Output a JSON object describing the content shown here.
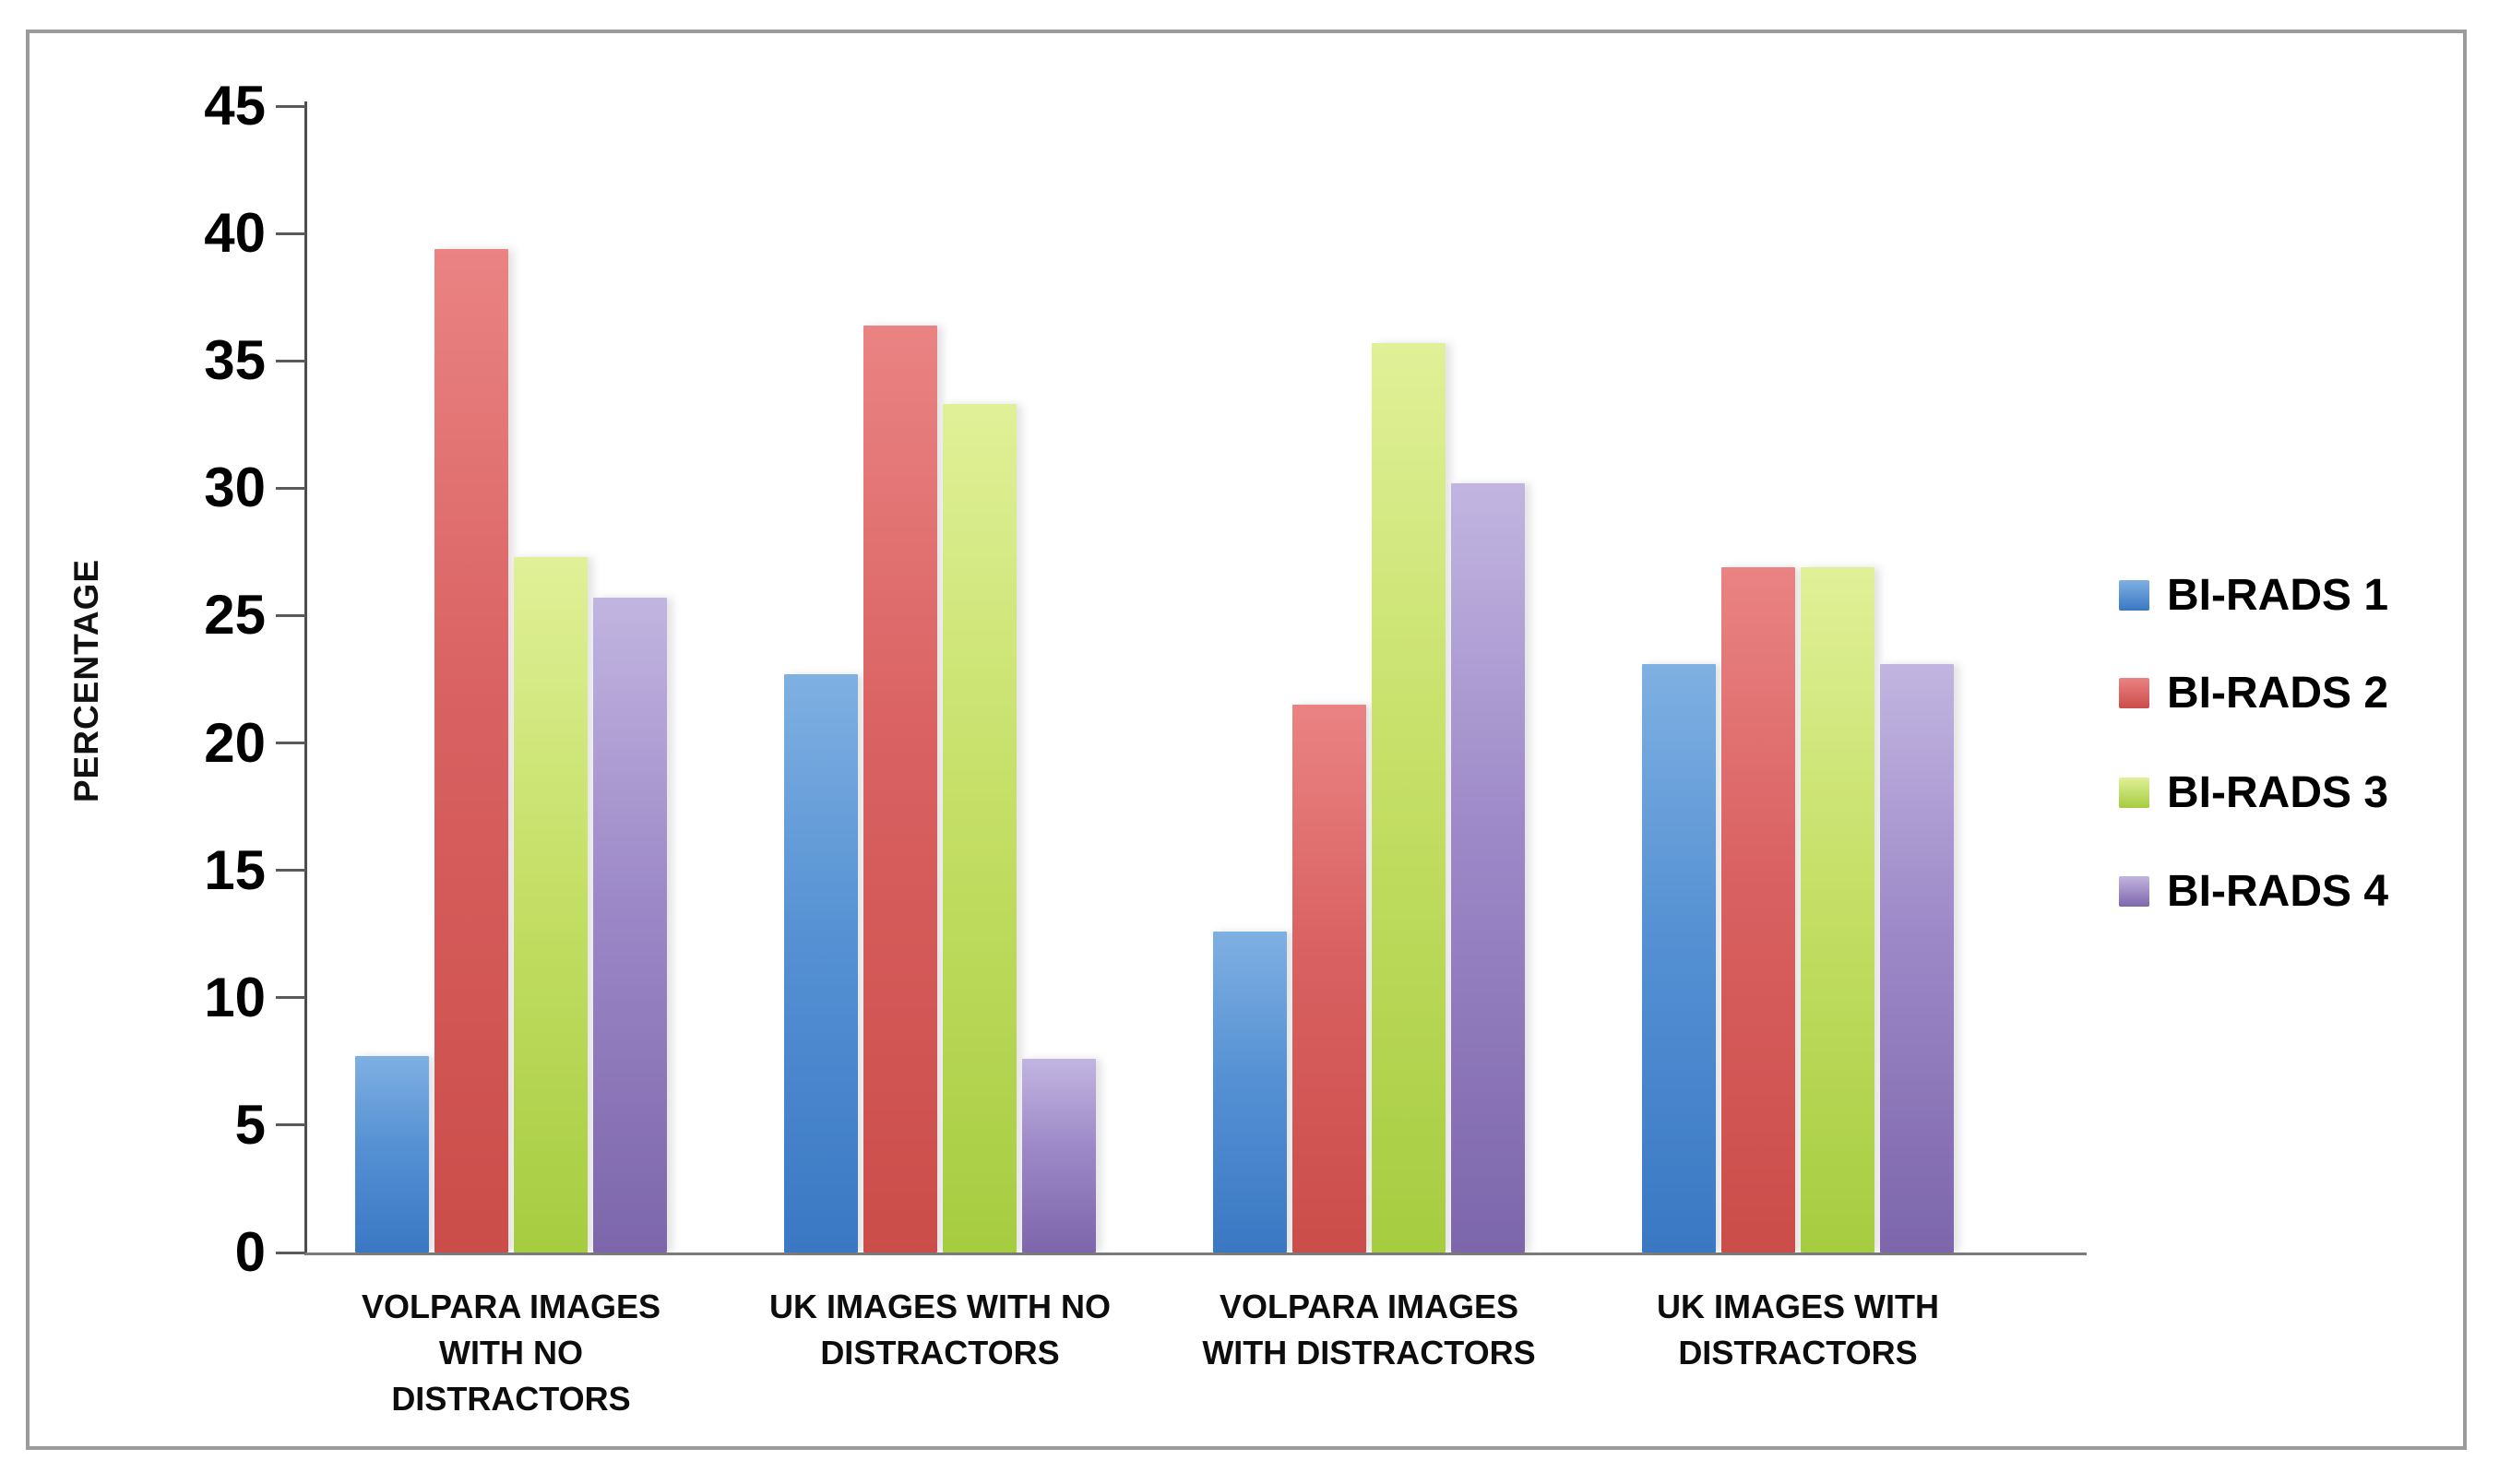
{
  "chart_data": {
    "type": "bar",
    "title": "",
    "xlabel": "",
    "ylabel": "PERCENTAGE",
    "ylim": [
      0,
      45
    ],
    "ytick_step": 5,
    "yticks": [
      0,
      5,
      10,
      15,
      20,
      25,
      30,
      35,
      40,
      45
    ],
    "grid": false,
    "legend_position": "right",
    "categories": [
      "VOLPARA IMAGES WITH NO DISTRACTORS",
      "UK IMAGES WITH NO DISTRACTORS",
      "VOLPARA IMAGES WITH DISTRACTORS",
      "UK IMAGES WITH DISTRACTORS"
    ],
    "categories_lines": [
      [
        "VOLPARA IMAGES",
        "WITH NO",
        "DISTRACTORS"
      ],
      [
        "UK IMAGES WITH NO",
        "DISTRACTORS"
      ],
      [
        "VOLPARA IMAGES",
        "WITH DISTRACTORS"
      ],
      [
        "UK IMAGES WITH",
        "DISTRACTORS"
      ]
    ],
    "series": [
      {
        "name": "BI-RADS 1",
        "color": "#4a86c8",
        "color_top": "#7fb0e2",
        "color_mid": "#5591d3",
        "color_bottom": "#3a78c4",
        "values": [
          7.7,
          22.7,
          12.6,
          23.1
        ]
      },
      {
        "name": "BI-RADS 2",
        "color": "#d45353",
        "color_top": "#ea8383",
        "color_mid": "#d96161",
        "color_bottom": "#cb4d4a",
        "values": [
          39.4,
          36.4,
          21.5,
          26.9
        ]
      },
      {
        "name": "BI-RADS 3",
        "color": "#bcd95e",
        "color_top": "#e0f098",
        "color_mid": "#c6e068",
        "color_bottom": "#a6cc40",
        "values": [
          27.3,
          33.3,
          35.7,
          26.9
        ]
      },
      {
        "name": "BI-RADS 4",
        "color": "#9683c1",
        "color_top": "#c1b5e0",
        "color_mid": "#9d89c8",
        "color_bottom": "#7d66ab",
        "values": [
          25.7,
          7.6,
          30.2,
          23.1
        ]
      }
    ]
  }
}
